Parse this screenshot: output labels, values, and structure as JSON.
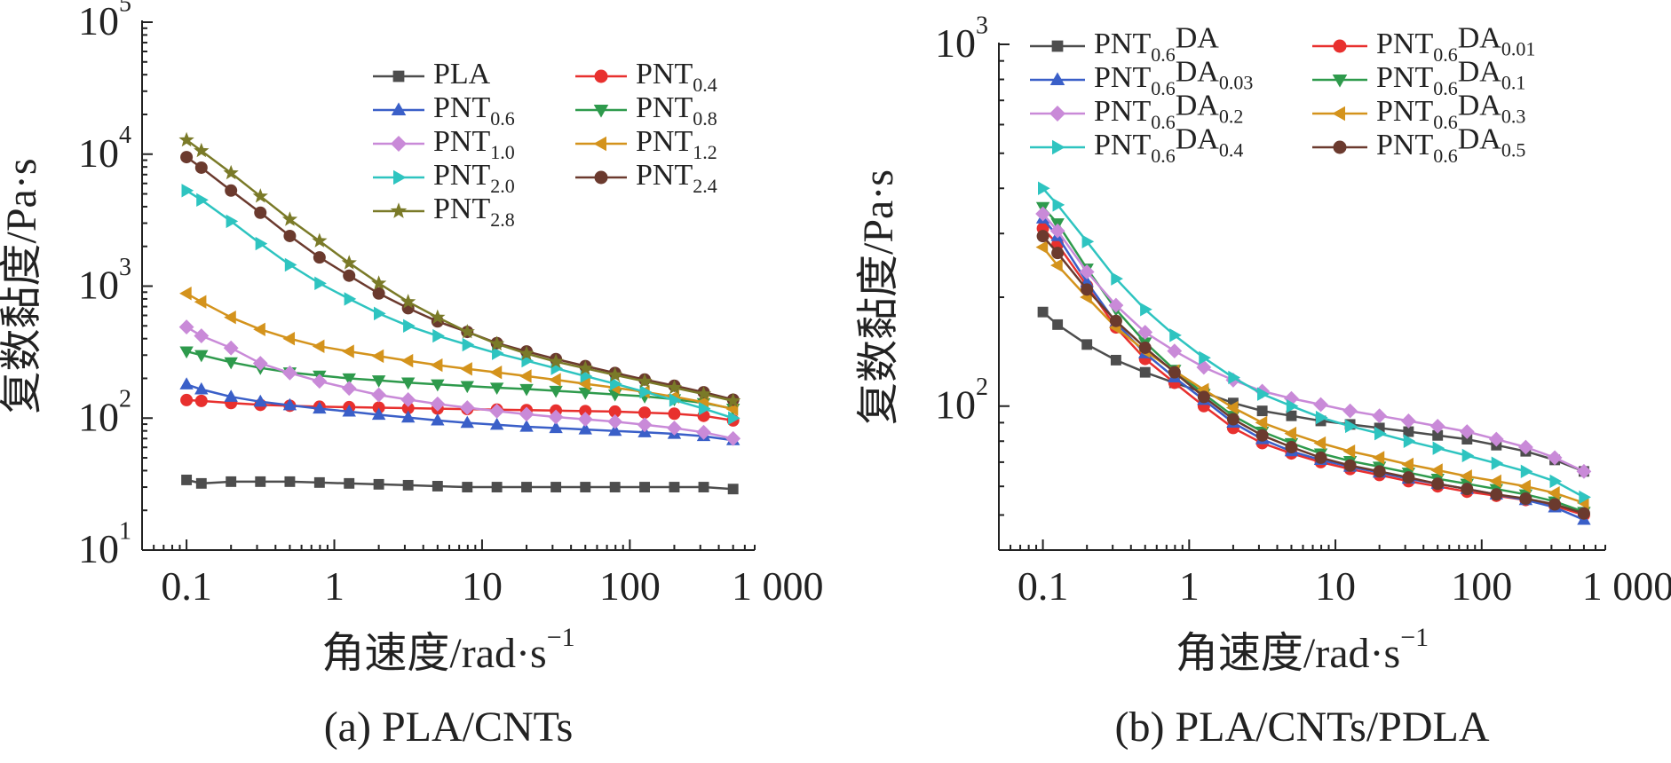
{
  "chart_data": [
    {
      "type": "line",
      "panel_label": "(a) PLA/CNTs",
      "xlabel": "角速度/rad·s",
      "xlabel_sup": "−1",
      "ylabel": "复数黏度/Pa·s",
      "x_scale": "log",
      "y_scale": "log",
      "xlim": [
        0.05,
        700
      ],
      "ylim": [
        10,
        100000
      ],
      "x_ticks": [
        {
          "value": 0.1,
          "label": "0.1"
        },
        {
          "value": 1,
          "label": "1"
        },
        {
          "value": 10,
          "label": "10"
        },
        {
          "value": 100,
          "label": "100"
        },
        {
          "value": 1000,
          "label": "1 000"
        }
      ],
      "y_ticks": [
        {
          "value": 10,
          "base": "10",
          "exp": "1"
        },
        {
          "value": 100,
          "base": "10",
          "exp": "2"
        },
        {
          "value": 1000,
          "base": "10",
          "exp": "3"
        },
        {
          "value": 10000,
          "base": "10",
          "exp": "4"
        },
        {
          "value": 100000,
          "base": "10",
          "exp": "5"
        }
      ],
      "legend_position": "top-right",
      "x": [
        0.1,
        0.126,
        0.2,
        0.316,
        0.5,
        0.794,
        1.26,
        2,
        3.16,
        5,
        7.94,
        12.6,
        20,
        31.6,
        50,
        79.4,
        126,
        200,
        316,
        500
      ],
      "series": [
        {
          "name": "PLA",
          "sub": "",
          "color": "#4d4d4d",
          "marker": "square",
          "values": [
            34,
            32,
            33,
            33,
            33,
            32.5,
            32,
            31.5,
            31,
            30.5,
            30,
            30,
            30,
            30,
            30,
            30,
            30,
            30,
            30,
            29
          ]
        },
        {
          "name": "PNT",
          "sub": "0.4",
          "color": "#e8302e",
          "marker": "circle",
          "values": [
            137,
            135,
            130,
            126,
            124,
            122,
            121,
            120,
            119,
            118,
            117,
            116,
            115,
            114,
            113,
            112,
            110,
            108,
            104,
            96
          ]
        },
        {
          "name": "PNT",
          "sub": "0.6",
          "color": "#3a5fc8",
          "marker": "triangle-up",
          "values": [
            180,
            165,
            145,
            133,
            125,
            118,
            112,
            106,
            101,
            96,
            92,
            89,
            86,
            84,
            82,
            80,
            78,
            76,
            73,
            68
          ]
        },
        {
          "name": "PNT",
          "sub": "0.8",
          "color": "#2e9a4c",
          "marker": "triangle-down",
          "values": [
            320,
            300,
            265,
            240,
            222,
            210,
            200,
            193,
            186,
            180,
            175,
            170,
            166,
            161,
            156,
            151,
            146,
            139,
            130,
            118
          ]
        },
        {
          "name": "PNT",
          "sub": "1.0",
          "color": "#c98ad8",
          "marker": "diamond",
          "values": [
            490,
            420,
            340,
            260,
            220,
            190,
            168,
            150,
            138,
            128,
            120,
            113,
            107,
            102,
            98,
            94,
            89,
            84,
            78,
            70
          ]
        },
        {
          "name": "PNT",
          "sub": "1.2",
          "color": "#d4931c",
          "marker": "triangle-left",
          "values": [
            880,
            760,
            580,
            470,
            400,
            350,
            320,
            295,
            272,
            252,
            236,
            222,
            208,
            195,
            182,
            170,
            158,
            145,
            132,
            117
          ]
        },
        {
          "name": "PNT",
          "sub": "2.0",
          "color": "#2ec4c0",
          "marker": "triangle-right",
          "values": [
            5300,
            4500,
            3100,
            2100,
            1450,
            1050,
            800,
            620,
            500,
            420,
            360,
            310,
            272,
            238,
            208,
            182,
            158,
            137,
            118,
            100
          ]
        },
        {
          "name": "PNT",
          "sub": "2.4",
          "color": "#6b3a2e",
          "marker": "circle",
          "values": [
            9500,
            7900,
            5300,
            3600,
            2400,
            1650,
            1200,
            880,
            680,
            540,
            450,
            370,
            320,
            280,
            248,
            220,
            196,
            176,
            157,
            138
          ]
        },
        {
          "name": "PNT",
          "sub": "2.8",
          "color": "#7a7a28",
          "marker": "star",
          "values": [
            12800,
            10600,
            7200,
            4800,
            3200,
            2200,
            1500,
            1050,
            760,
            580,
            450,
            365,
            308,
            268,
            238,
            212,
            190,
            170,
            152,
            135
          ]
        }
      ]
    },
    {
      "type": "line",
      "panel_label": "(b) PLA/CNTs/PDLA",
      "xlabel": "角速度/rad·s",
      "xlabel_sup": "−1",
      "ylabel": "复数黏度/Pa·s",
      "x_scale": "log",
      "y_scale": "log",
      "xlim": [
        0.05,
        700
      ],
      "ylim": [
        40,
        1000
      ],
      "x_ticks": [
        {
          "value": 0.1,
          "label": "0.1"
        },
        {
          "value": 1,
          "label": "1"
        },
        {
          "value": 10,
          "label": "10"
        },
        {
          "value": 100,
          "label": "100"
        },
        {
          "value": 1000,
          "label": "1 000"
        }
      ],
      "y_ticks": [
        {
          "value": 100,
          "base": "10",
          "exp": "2"
        },
        {
          "value": 1000,
          "base": "10",
          "exp": "3"
        }
      ],
      "legend_position": "top-right",
      "x": [
        0.1,
        0.126,
        0.2,
        0.316,
        0.5,
        0.794,
        1.26,
        2,
        3.16,
        5,
        7.94,
        12.6,
        20,
        31.6,
        50,
        79.4,
        126,
        200,
        316,
        500
      ],
      "series": [
        {
          "name": "PNT",
          "sub": "0.6",
          "sub2": "",
          "color": "#4d4d4d",
          "marker": "square",
          "values": [
            182,
            168,
            148,
            134,
            124,
            116,
            109,
            102,
            97,
            94,
            91,
            89,
            87,
            85,
            83,
            81,
            78,
            75,
            71,
            66
          ]
        },
        {
          "name": "PNT",
          "sub": "0.6",
          "sub2": "0.01",
          "color": "#e8302e",
          "marker": "circle",
          "values": [
            310,
            280,
            215,
            165,
            135,
            116,
            100,
            87,
            79,
            74,
            70,
            67,
            64.5,
            62,
            60,
            58,
            56.5,
            55,
            53,
            50
          ]
        },
        {
          "name": "PNT",
          "sub": "0.6",
          "sub2": "0.03",
          "color": "#3a5fc8",
          "marker": "triangle-up",
          "values": [
            330,
            295,
            220,
            170,
            140,
            120,
            104,
            90,
            81,
            75,
            71,
            68,
            65.5,
            63,
            61,
            59,
            57,
            55,
            52.5,
            48.5
          ]
        },
        {
          "name": "PNT",
          "sub": "0.6",
          "sub2": "0.1",
          "color": "#2e9a4c",
          "marker": "triangle-down",
          "values": [
            355,
            320,
            240,
            185,
            150,
            126,
            108,
            94,
            85,
            79,
            74,
            70.5,
            68,
            65.5,
            63,
            61,
            59,
            57,
            54.5,
            51
          ]
        },
        {
          "name": "PNT",
          "sub": "0.6",
          "sub2": "0.2",
          "color": "#c98ad8",
          "marker": "diamond",
          "values": [
            340,
            305,
            235,
            190,
            160,
            142,
            128,
            118,
            110,
            105,
            101,
            97,
            94,
            91,
            88,
            85,
            81,
            77,
            72,
            66
          ]
        },
        {
          "name": "PNT",
          "sub": "0.6",
          "sub2": "0.3",
          "color": "#d4931c",
          "marker": "triangle-left",
          "values": [
            275,
            245,
            200,
            165,
            142,
            125,
            111,
            99,
            90,
            84,
            79,
            75,
            72,
            69,
            66.5,
            64,
            62,
            60,
            57.5,
            54
          ]
        },
        {
          "name": "PNT",
          "sub": "0.6",
          "sub2": "0.4",
          "color": "#2ec4c0",
          "marker": "triangle-right",
          "values": [
            400,
            360,
            285,
            225,
            185,
            157,
            136,
            120,
            108,
            100,
            93,
            88,
            84,
            80,
            76.5,
            73,
            69.5,
            66,
            62,
            56
          ]
        },
        {
          "name": "PNT",
          "sub": "0.6",
          "sub2": "0.5",
          "color": "#6b3a2e",
          "marker": "circle",
          "values": [
            295,
            265,
            210,
            172,
            145,
            124,
            106,
            92,
            83,
            77,
            72,
            68.5,
            66,
            63.5,
            61,
            59,
            57,
            55.5,
            53.5,
            50.5
          ]
        }
      ]
    }
  ]
}
